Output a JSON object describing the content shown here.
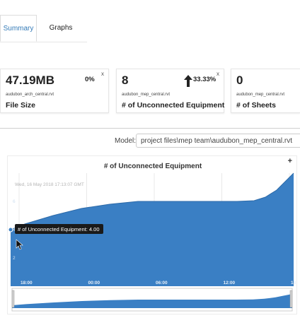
{
  "tabs": [
    {
      "label": "Summary"
    },
    {
      "label": "Graphs"
    }
  ],
  "cards": [
    {
      "value": "47.19MB",
      "change": "0%",
      "file": "audubon_arch_central.rvt",
      "label": "File Size",
      "close": "x"
    },
    {
      "value": "8",
      "change": "33.33%",
      "file": "audubon_mep_central.rvt",
      "label": "# of Unconnected Equipment",
      "close": "x"
    },
    {
      "value": "0",
      "change": "",
      "file": "audubon_mep_central.rvt",
      "label": "# of Sheets",
      "close": ""
    }
  ],
  "model": {
    "label": "Model:",
    "value": "project files\\mep team\\audubon_mep_central.rvt"
  },
  "chart": {
    "plus_label": "+",
    "tooltip_label": "# of Unconnected Equipment: 4.00",
    "date_label": "Wed, 16 May 2018 17:13:07 GMT"
  },
  "chart_data": {
    "type": "area",
    "title": "# of Unconnected Equipment",
    "xlabel": "",
    "ylabel": "",
    "x_ticks": [
      "18:00",
      "00:00",
      "06:00",
      "12:00",
      "18"
    ],
    "y_ticks": [
      "2",
      "4",
      "6"
    ],
    "ylim": [
      0,
      8
    ],
    "grid": true,
    "series": [
      {
        "x": [
          0,
          0.05,
          0.15,
          0.25,
          0.35,
          0.45,
          0.5,
          0.6,
          0.7,
          0.8,
          0.86,
          0.9,
          0.94,
          0.97,
          1.0
        ],
        "values": [
          4.0,
          4.4,
          5.0,
          5.5,
          5.8,
          6.0,
          6.0,
          6.0,
          6.0,
          6.0,
          6.05,
          6.3,
          6.8,
          7.4,
          8.0
        ]
      }
    ],
    "color": "#3a7fc4"
  }
}
